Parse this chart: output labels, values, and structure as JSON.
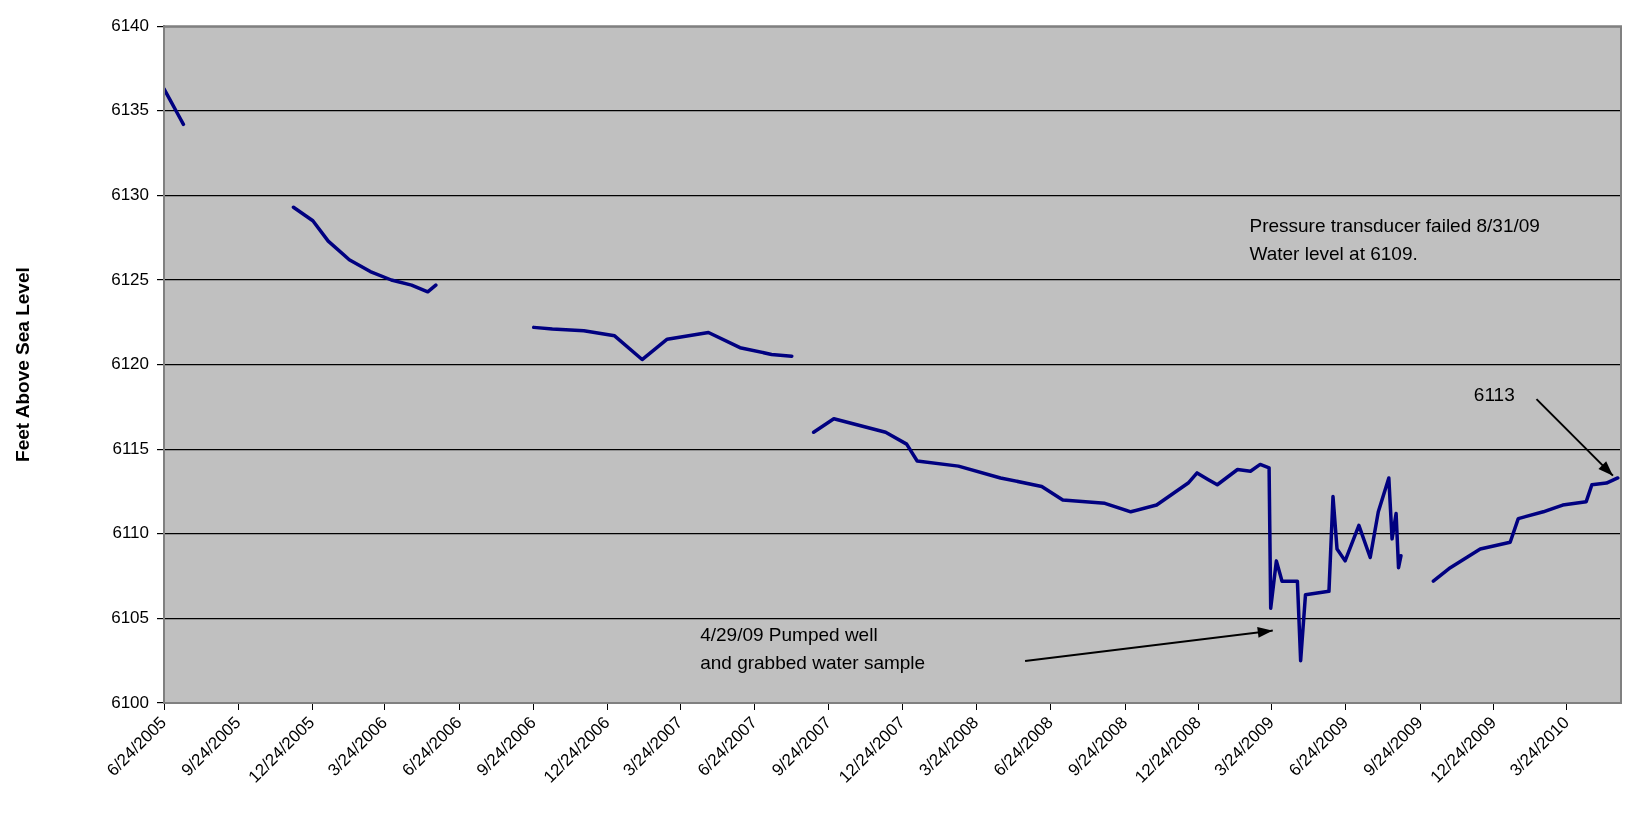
{
  "chart_data": {
    "type": "line",
    "ylabel": "Feet Above Sea Level",
    "x": [
      "2005-06-24",
      "2005-07-02",
      "2005-07-10",
      "2005-07-18",
      "2005-09-01",
      "2005-12-01",
      "2005-12-25",
      "2006-01-13",
      "2006-02-08",
      "2006-03-06",
      "2006-04-01",
      "2006-04-26",
      "2006-05-16",
      "2006-05-26",
      "2006-08-01",
      "2006-09-24",
      "2006-10-17",
      "2006-11-25",
      "2007-01-02",
      "2007-02-05",
      "2007-03-08",
      "2007-04-28",
      "2007-06-06",
      "2007-07-15",
      "2007-08-09",
      "2007-08-25",
      "2007-09-05",
      "2007-09-30",
      "2007-12-03",
      "2007-12-29",
      "2008-01-11",
      "2008-03-02",
      "2008-04-23",
      "2008-06-13",
      "2008-07-09",
      "2008-08-30",
      "2008-10-01",
      "2008-11-02",
      "2008-12-11",
      "2008-12-22",
      "2009-01-05",
      "2009-01-16",
      "2009-02-10",
      "2009-02-26",
      "2009-03-10",
      "2009-03-21",
      "2009-03-23",
      "2009-03-30",
      "2009-04-06",
      "2009-04-25",
      "2009-04-29",
      "2009-05-05",
      "2009-06-03",
      "2009-06-08",
      "2009-06-13",
      "2009-06-23",
      "2009-07-10",
      "2009-07-24",
      "2009-08-03",
      "2009-08-16",
      "2009-08-20",
      "2009-08-25",
      "2009-08-28",
      "2009-08-31",
      "2009-09-20",
      "2009-10-10",
      "2009-10-31",
      "2009-12-07",
      "2010-01-13",
      "2010-01-23",
      "2010-02-23",
      "2010-03-19",
      "2010-04-17",
      "2010-04-24",
      "2010-05-12",
      "2010-05-26"
    ],
    "series": [
      {
        "color": "#000080",
        "values": [
          6136.3,
          6135.6,
          6134.9,
          6134.2,
          null,
          6129.3,
          6128.5,
          6127.3,
          6126.2,
          6125.5,
          6125,
          6124.7,
          6124.3,
          6124.7,
          null,
          6122.2,
          6122.1,
          6122,
          6121.7,
          6120.3,
          6121.5,
          6121.9,
          6121,
          6120.6,
          6120.5,
          null,
          6116,
          6116.8,
          6116,
          6115.3,
          6114.3,
          6114,
          6113.3,
          6112.8,
          6112,
          6111.8,
          6111.3,
          6111.7,
          6113,
          6113.6,
          6113.2,
          6112.9,
          6113.8,
          6113.7,
          6114.1,
          6113.9,
          6105.6,
          6108.4,
          6107.2,
          6107.2,
          6102.5,
          6106.4,
          6106.6,
          6112.2,
          6109.1,
          6108.4,
          6110.5,
          6108.6,
          6111.3,
          6113.3,
          6109.7,
          6111.2,
          6108,
          6108.7,
          null,
          6107.2,
          6108,
          6109.1,
          6109.5,
          6110.9,
          6111.3,
          6111.7,
          6111.9,
          6112.9,
          6113,
          6113.3
        ]
      }
    ],
    "xlim": [
      "2005-06-24",
      "2010-05-30"
    ],
    "xticks": [
      {
        "value": "2005-06-24",
        "label": "6/24/2005"
      },
      {
        "value": "2005-09-24",
        "label": "9/24/2005"
      },
      {
        "value": "2005-12-24",
        "label": "12/24/2005"
      },
      {
        "value": "2006-03-24",
        "label": "3/24/2006"
      },
      {
        "value": "2006-06-24",
        "label": "6/24/2006"
      },
      {
        "value": "2006-09-24",
        "label": "9/24/2006"
      },
      {
        "value": "2006-12-24",
        "label": "12/24/2006"
      },
      {
        "value": "2007-03-24",
        "label": "3/24/2007"
      },
      {
        "value": "2007-06-24",
        "label": "6/24/2007"
      },
      {
        "value": "2007-09-24",
        "label": "9/24/2007"
      },
      {
        "value": "2007-12-24",
        "label": "12/24/2007"
      },
      {
        "value": "2008-03-24",
        "label": "3/24/2008"
      },
      {
        "value": "2008-06-24",
        "label": "6/24/2008"
      },
      {
        "value": "2008-09-24",
        "label": "9/24/2008"
      },
      {
        "value": "2008-12-24",
        "label": "12/24/2008"
      },
      {
        "value": "2009-03-24",
        "label": "3/24/2009"
      },
      {
        "value": "2009-06-24",
        "label": "6/24/2009"
      },
      {
        "value": "2009-09-24",
        "label": "9/24/2009"
      },
      {
        "value": "2009-12-24",
        "label": "12/24/2009"
      },
      {
        "value": "2010-03-24",
        "label": "3/24/2010"
      }
    ],
    "ylim": [
      6100,
      6140
    ],
    "yticks": [
      6100,
      6105,
      6110,
      6115,
      6120,
      6125,
      6130,
      6135,
      6140
    ],
    "grid": "y",
    "legend": false,
    "marker": "none",
    "line_style": "solid",
    "annotations": [
      "Pressure transducer failed 8/31/09\nWater level at 6109.",
      "4/29/09 Pumped well\nand grabbed water sample",
      {
        "text": "6113",
        "x": "2010-05-20",
        "y": 6113.2
      }
    ]
  }
}
